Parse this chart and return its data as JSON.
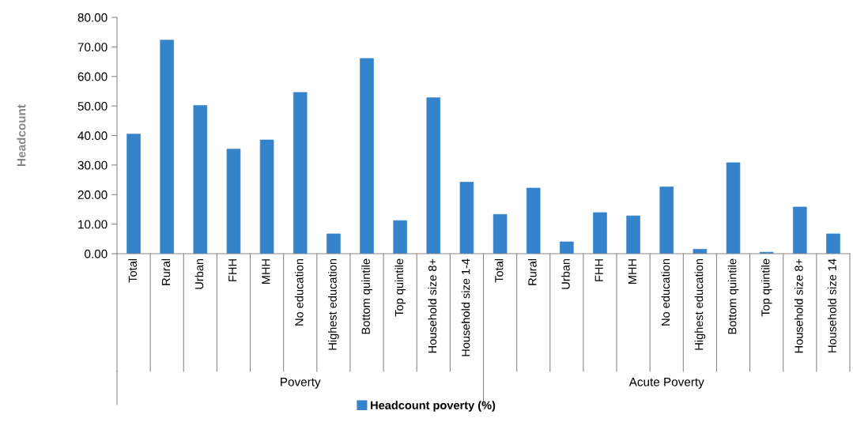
{
  "chart_data": {
    "type": "bar",
    "ylabel": "Headcount",
    "categories": [
      "Total",
      "Rural",
      "Urban",
      "FHH",
      "MHH",
      "No education",
      "Highest education",
      "Bottom quintile",
      "Top quintile",
      "Household size 8+",
      "Household size 1-4",
      "Total",
      "Rural",
      "Urban",
      "FHH",
      "MHH",
      "No education",
      "Highest education",
      "Bottom quintile",
      "Top quintile",
      "Household size 8+",
      "Household size 14"
    ],
    "series": [
      {
        "name": "Headcount poverty (%)",
        "color": "#3483cb",
        "values": [
          40.5,
          72.3,
          50.2,
          35.4,
          38.5,
          54.6,
          6.7,
          66.1,
          11.2,
          52.8,
          24.2,
          13.3,
          22.2,
          4.0,
          13.9,
          12.8,
          22.6,
          1.5,
          30.8,
          0.5,
          15.8,
          6.7
        ]
      }
    ],
    "annotations": [
      "Poverty",
      "Acute Poverty"
    ],
    "ylim": [
      0,
      80
    ],
    "yticks": [
      {
        "value": 0,
        "label": "0.00"
      },
      {
        "value": 10,
        "label": "10.00"
      },
      {
        "value": 20,
        "label": "20.00"
      },
      {
        "value": 30,
        "label": "30.00"
      },
      {
        "value": 40,
        "label": "40.00"
      },
      {
        "value": 50,
        "label": "50.00"
      },
      {
        "value": 60,
        "label": "60.00"
      },
      {
        "value": 70,
        "label": "70.00"
      },
      {
        "value": 80,
        "label": "80.00"
      }
    ],
    "grid": false,
    "legend": "bottom"
  }
}
